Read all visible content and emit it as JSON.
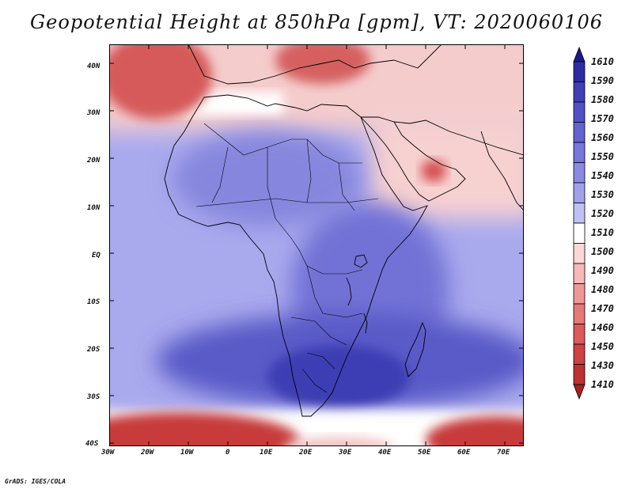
{
  "title": "Geopotential Height at 850hPa [gpm], VT: 2020060106",
  "footer": "GrADS: IGES/COLA",
  "colors": {
    "ocean_high_pressure_blue": "#5c5cd6",
    "deep_blue": "#3b3bb8",
    "light_blue": "#b4b4f0",
    "white": "#ffffff",
    "light_red": "#f4c0c0",
    "mid_red": "#e06868",
    "dark_red": "#b52a2a",
    "coastline": "#000000"
  },
  "map": {
    "projection": "lat-lon",
    "lon_range": [
      -30,
      75
    ],
    "lat_range": [
      -40,
      45
    ],
    "lon_ticks": [
      "30W",
      "20W",
      "10W",
      "0",
      "10E",
      "20E",
      "30E",
      "40E",
      "50E",
      "60E",
      "70E"
    ],
    "lat_ticks": [
      "40S",
      "30S",
      "20S",
      "10S",
      "EQ",
      "10N",
      "20N",
      "30N",
      "40N"
    ],
    "variable": "Geopotential Height",
    "level": "850hPa",
    "units": "gpm",
    "valid_time": "2020060106"
  },
  "colorbar": {
    "labels": [
      "1610",
      "1590",
      "1580",
      "1570",
      "1560",
      "1550",
      "1540",
      "1530",
      "1520",
      "1510",
      "1500",
      "1490",
      "1480",
      "1470",
      "1460",
      "1450",
      "1430",
      "1410"
    ],
    "colors": [
      "#1a1a8c",
      "#2d2da3",
      "#3f3fb6",
      "#5151c6",
      "#6363d2",
      "#7676dc",
      "#8a8ae4",
      "#a0a0ec",
      "#c0c0f4",
      "#ffffff",
      "#fbd8d8",
      "#f6b8b8",
      "#ef9898",
      "#e67878",
      "#dc5a5a",
      "#cf4242",
      "#bf3030",
      "#a82020"
    ]
  }
}
